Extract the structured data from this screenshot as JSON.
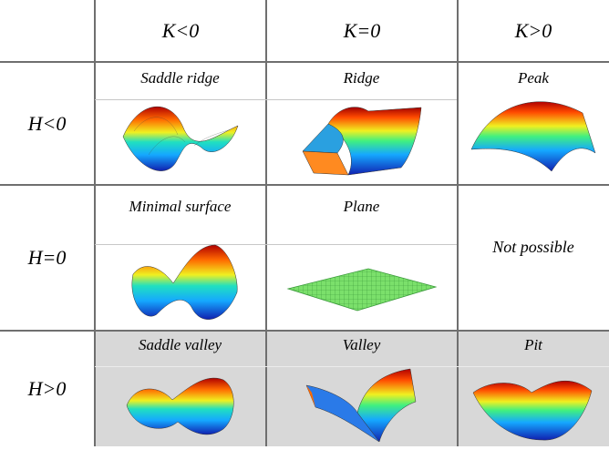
{
  "columns": [
    "K<0",
    "K=0",
    "K>0"
  ],
  "rows": [
    "H<0",
    "H=0",
    "H>0"
  ],
  "cells": [
    [
      "Saddle ridge",
      "Ridge",
      "Peak"
    ],
    [
      "Minimal surface",
      "Plane",
      "Not possible"
    ],
    [
      "Saddle valley",
      "Valley",
      "Pit"
    ]
  ],
  "colors": {
    "grid_line": "#6f6f6f",
    "inner_line": "#c7c7c7",
    "shaded_row": "#d8d8d8",
    "plane_fill": "#7be06b",
    "jet_low": "#1020b0",
    "jet_high": "#b00000"
  }
}
